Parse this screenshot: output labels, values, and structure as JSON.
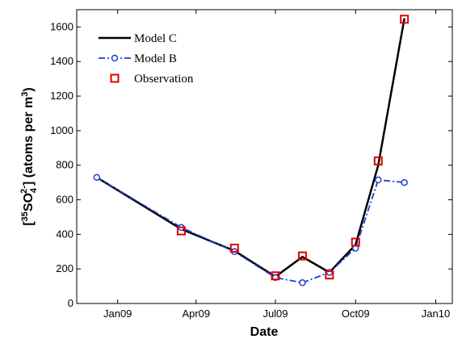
{
  "chart_data": {
    "type": "line",
    "xlabel": "Date",
    "ylabel_parts": [
      "[",
      "35",
      "SO",
      "4",
      "2-",
      "] (atoms per m",
      "3",
      ")"
    ],
    "ylim": [
      0,
      1700
    ],
    "yticks": [
      0,
      200,
      400,
      600,
      800,
      1000,
      1200,
      1400,
      1600
    ],
    "xlim": [
      "2008-11-15",
      "2010-01-20"
    ],
    "xticks": [
      {
        "date": "2009-01-01",
        "label": "Jan09"
      },
      {
        "date": "2009-04-01",
        "label": "Apr09"
      },
      {
        "date": "2009-07-01",
        "label": "Jul09"
      },
      {
        "date": "2009-10-01",
        "label": "Oct09"
      },
      {
        "date": "2010-01-01",
        "label": "Jan10"
      }
    ],
    "grid": false,
    "legend_position": "top-left",
    "series": [
      {
        "name": "Model C",
        "style": "solid",
        "color": "#000000",
        "marker": "none",
        "x": [
          "2008-12-08",
          "2009-03-15",
          "2009-05-15",
          "2009-07-01",
          "2009-08-01",
          "2009-09-01",
          "2009-10-01",
          "2009-10-27",
          "2009-11-26"
        ],
        "values": [
          730,
          430,
          305,
          155,
          270,
          180,
          340,
          800,
          1650
        ]
      },
      {
        "name": "Model B",
        "style": "dashdot",
        "color": "#1f3fcc",
        "marker": "circle",
        "x": [
          "2008-12-08",
          "2009-03-15",
          "2009-05-15",
          "2009-07-01",
          "2009-08-01",
          "2009-09-01",
          "2009-10-01",
          "2009-10-27",
          "2009-11-26"
        ],
        "values": [
          730,
          440,
          300,
          150,
          120,
          180,
          320,
          715,
          700
        ]
      },
      {
        "name": "Observation",
        "style": "none",
        "color": "#e00000",
        "marker": "square",
        "x": [
          "2009-03-15",
          "2009-05-15",
          "2009-07-01",
          "2009-08-01",
          "2009-09-01",
          "2009-10-01",
          "2009-10-27",
          "2009-11-26"
        ],
        "values": [
          420,
          320,
          160,
          275,
          165,
          355,
          825,
          1645
        ]
      }
    ]
  }
}
